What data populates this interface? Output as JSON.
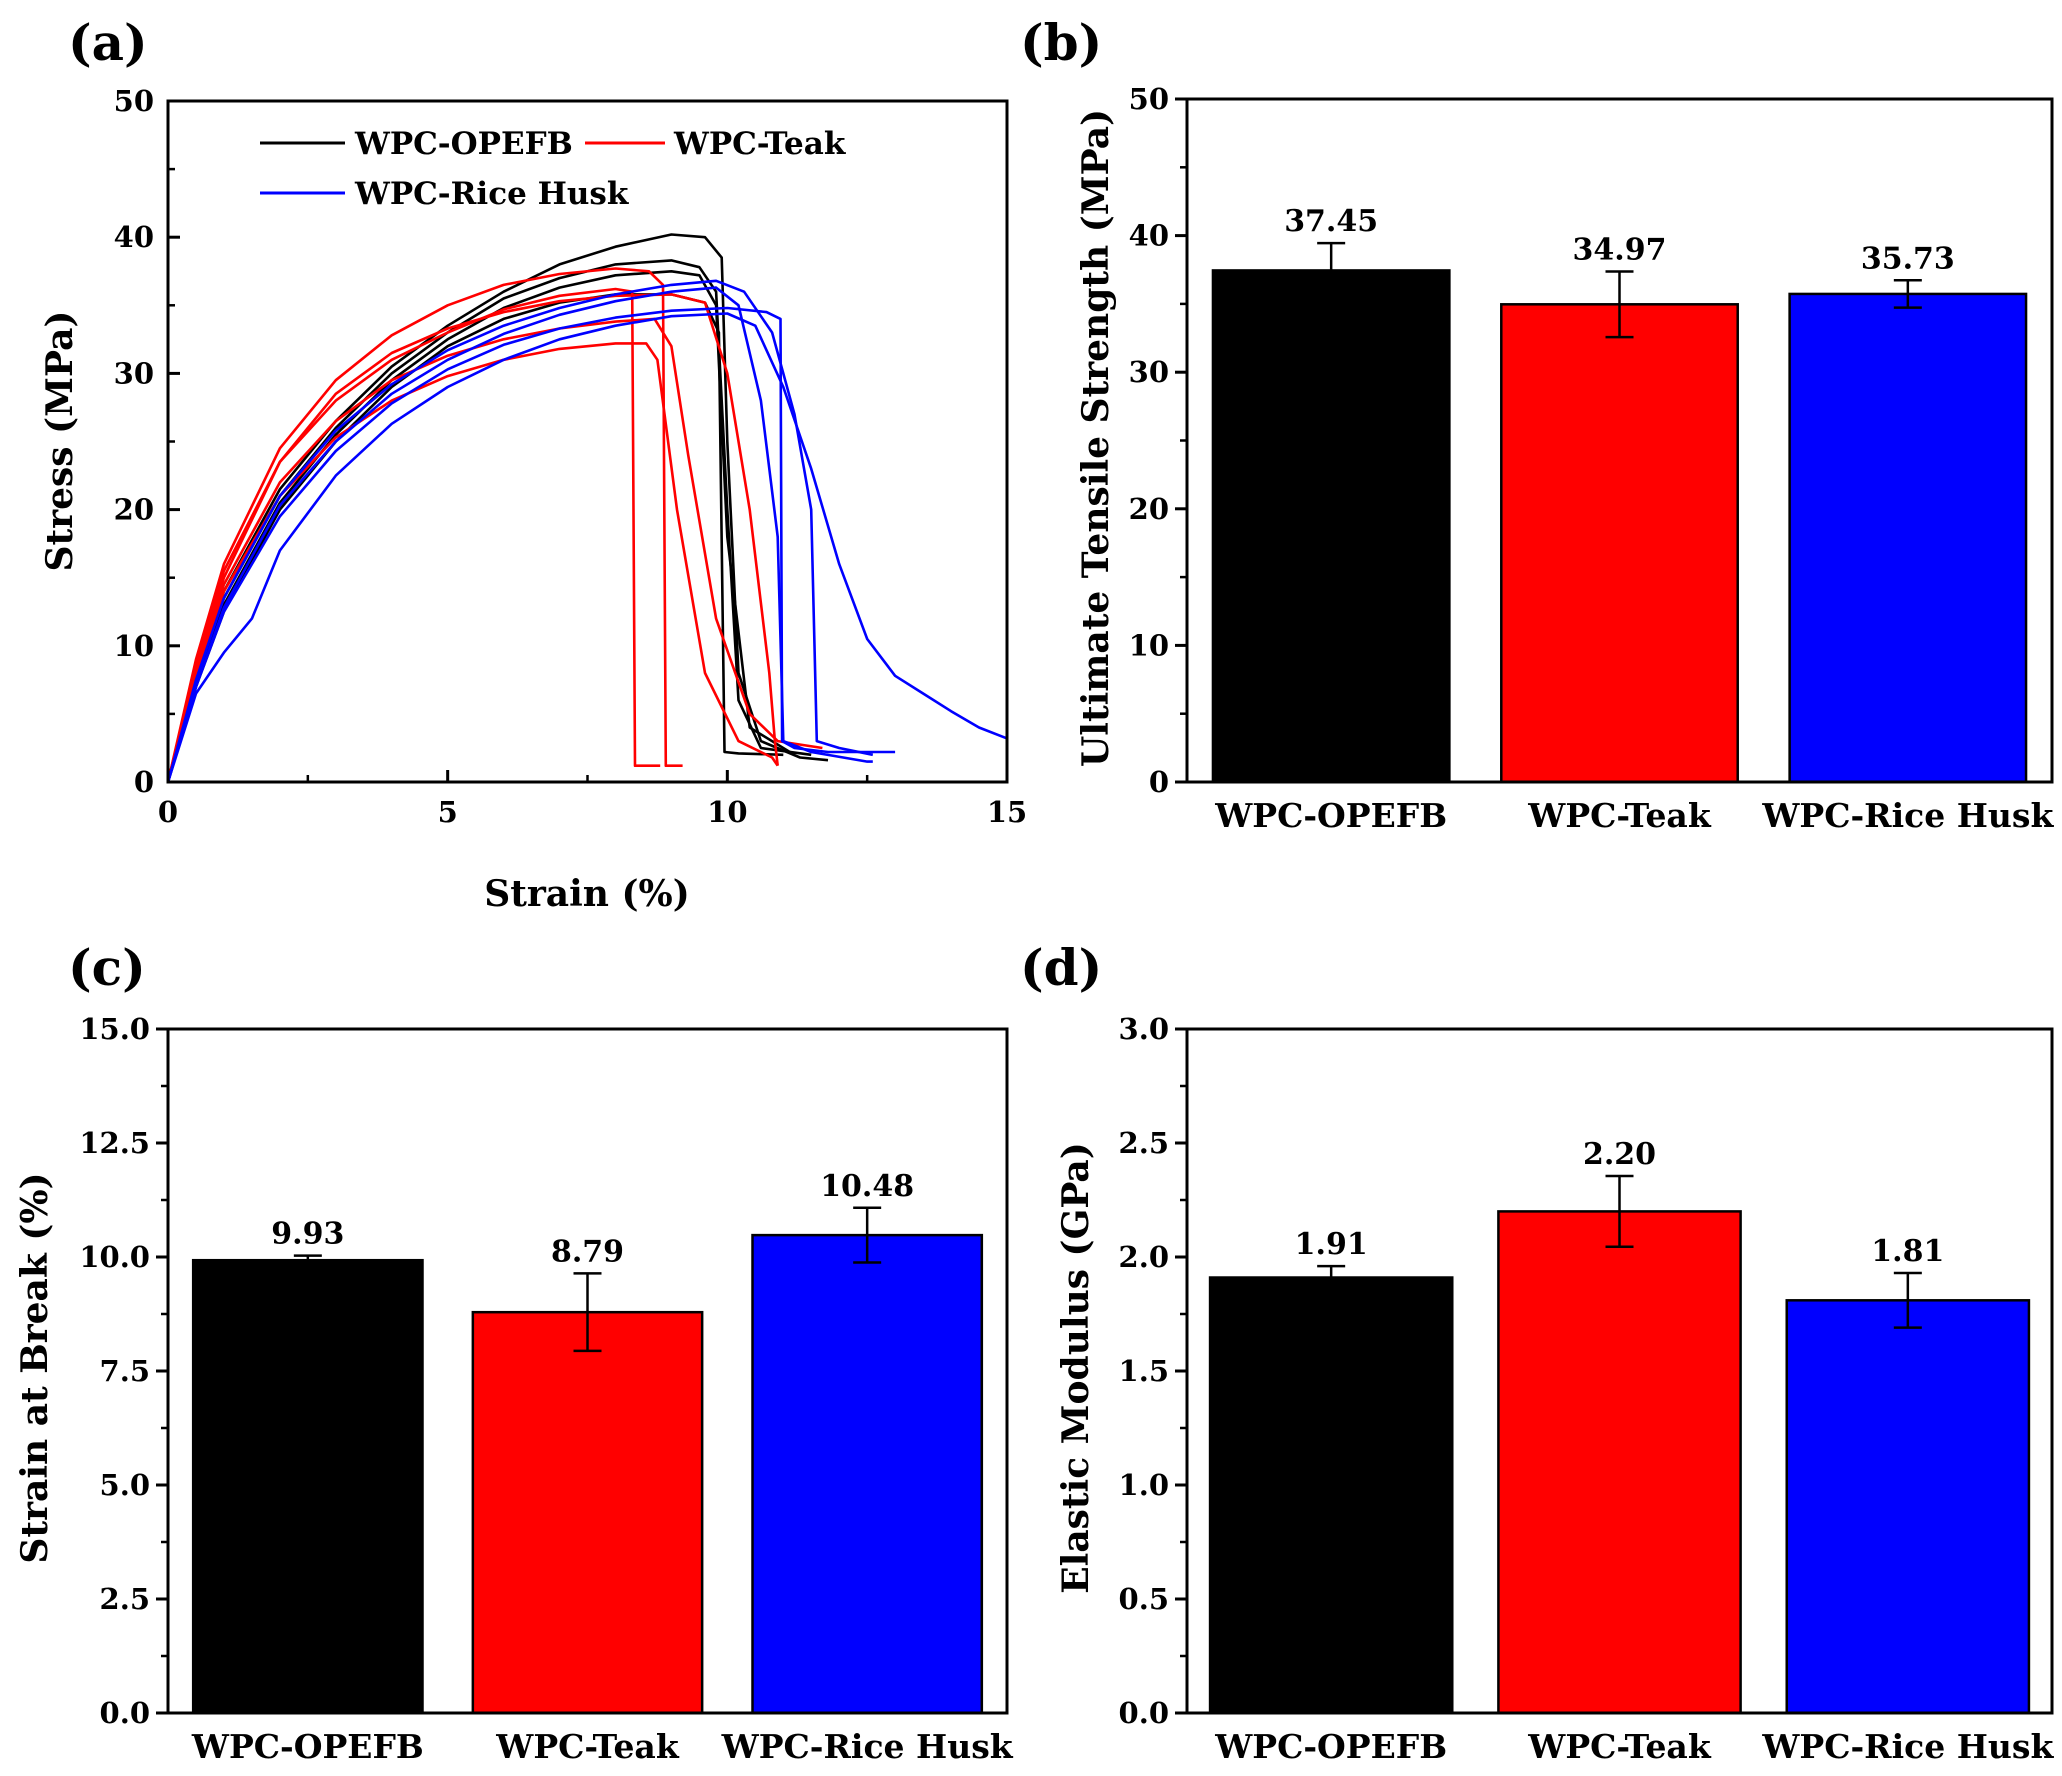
{
  "colors": {
    "opefb": "#000000",
    "teak": "#ff0000",
    "rice": "#0000ff"
  },
  "chart_data": [
    {
      "panel": "(a)",
      "type": "line",
      "xlabel": "Strain (%)",
      "ylabel": "Stress (MPa)",
      "xlim": [
        0,
        15
      ],
      "ylim": [
        0,
        50
      ],
      "xticks": [
        0,
        5,
        10,
        15
      ],
      "yticks": [
        0,
        10,
        20,
        30,
        40,
        50
      ],
      "legend": [
        "WPC-OPEFB",
        "WPC-Teak",
        "WPC-Rice Husk"
      ],
      "series": [
        {
          "name": "WPC-OPEFB",
          "color": "#000000",
          "x": [
            0,
            0.5,
            1,
            2,
            3,
            4,
            5,
            6,
            7,
            8,
            9,
            9.6,
            9.9,
            10.0,
            10.2,
            10.6,
            11.3,
            11.8
          ],
          "y": [
            0,
            8,
            14,
            21.5,
            26.5,
            30.5,
            33.5,
            36,
            38,
            39.3,
            40.2,
            40,
            38.5,
            25,
            8,
            3,
            1.8,
            1.6
          ]
        },
        {
          "name": "WPC-OPEFB",
          "color": "#000000",
          "x": [
            0,
            0.5,
            1,
            2,
            3,
            4,
            5,
            6,
            7,
            8,
            9,
            9.5,
            9.8,
            10.0,
            10.2,
            10.6,
            11.5
          ],
          "y": [
            0,
            7.5,
            13.5,
            21,
            26,
            30,
            33,
            35.5,
            37,
            38,
            38.3,
            37.8,
            36,
            20,
            6,
            2.5,
            2
          ]
        },
        {
          "name": "WPC-OPEFB",
          "color": "#000000",
          "x": [
            0,
            0.5,
            1,
            2,
            3,
            4,
            5,
            6,
            7,
            8,
            9,
            9.5,
            9.8,
            10.0,
            10.4,
            11.2
          ],
          "y": [
            0,
            7,
            13,
            20.5,
            25.5,
            29.5,
            32.5,
            34.8,
            36.3,
            37.2,
            37.5,
            37.2,
            35,
            18,
            4,
            2
          ]
        },
        {
          "name": "WPC-OPEFB",
          "color": "#000000",
          "x": [
            0,
            0.5,
            1,
            2,
            3,
            4,
            5,
            6,
            7,
            8,
            9,
            9.6,
            9.85,
            9.95,
            10.2,
            11.0
          ],
          "y": [
            0,
            7,
            12.5,
            20,
            25,
            29,
            32,
            34,
            35.2,
            35.8,
            35.8,
            35.2,
            33,
            2.2,
            2.1,
            2
          ]
        },
        {
          "name": "WPC-Teak",
          "color": "#ff0000",
          "x": [
            0,
            0.5,
            1,
            2,
            3,
            4,
            5,
            6,
            7,
            8,
            8.6,
            8.85,
            8.9,
            9.2
          ],
          "y": [
            0,
            9,
            16,
            24.5,
            29.5,
            32.8,
            35,
            36.5,
            37.3,
            37.7,
            37.5,
            36.5,
            1.2,
            1.2
          ]
        },
        {
          "name": "WPC-Teak",
          "color": "#ff0000",
          "x": [
            0,
            0.5,
            1,
            2,
            3,
            4,
            5,
            6,
            7,
            8,
            8.3,
            8.35,
            8.8
          ],
          "y": [
            0,
            8.5,
            15,
            23.5,
            28,
            31,
            33,
            34.7,
            35.7,
            36.2,
            36,
            1.2,
            1.2
          ]
        },
        {
          "name": "WPC-Teak",
          "color": "#ff0000",
          "x": [
            0,
            0.5,
            1,
            2,
            3,
            4,
            5,
            6,
            7,
            8,
            8.7,
            9.0,
            9.3,
            9.8,
            10.4,
            10.9,
            11.7
          ],
          "y": [
            0,
            8,
            14.5,
            22,
            26.5,
            29.5,
            31.3,
            32.5,
            33.3,
            33.8,
            34,
            32,
            24,
            12,
            5,
            3,
            2.5
          ]
        },
        {
          "name": "WPC-Teak",
          "color": "#ff0000",
          "x": [
            0,
            0.5,
            1,
            2,
            3,
            4,
            5,
            6,
            7,
            8,
            8.55,
            8.75,
            9.1,
            9.6,
            10.2,
            10.8,
            10.9
          ],
          "y": [
            0,
            8,
            14,
            21,
            25.3,
            28,
            29.8,
            31,
            31.8,
            32.2,
            32.2,
            31,
            20,
            8,
            3,
            1.8,
            1.2
          ]
        },
        {
          "name": "WPC-Teak",
          "color": "#ff0000",
          "x": [
            0,
            0.5,
            1,
            2,
            3,
            4,
            5,
            6,
            7,
            8,
            9,
            9.6,
            10.0,
            10.4,
            10.75,
            10.85,
            10.9
          ],
          "y": [
            0,
            8.5,
            15.5,
            23.5,
            28.5,
            31.5,
            33.3,
            34.5,
            35.3,
            35.7,
            35.8,
            35.2,
            30,
            20,
            8,
            3,
            1.2
          ]
        },
        {
          "name": "WPC-Rice Husk",
          "color": "#0000ff",
          "x": [
            0,
            0.5,
            1,
            2,
            3,
            4,
            5,
            6,
            7,
            8,
            9,
            10,
            10.7,
            10.95,
            10.98,
            11.2,
            11.8,
            12.5,
            13.0
          ],
          "y": [
            0,
            7,
            12.5,
            19.5,
            24.3,
            27.8,
            30.3,
            32.1,
            33.3,
            34.1,
            34.6,
            34.8,
            34.5,
            34,
            3,
            2.5,
            2.2,
            2.2,
            2.2
          ]
        },
        {
          "name": "WPC-Rice Husk",
          "color": "#0000ff",
          "x": [
            0,
            0.5,
            1,
            1.5,
            2,
            3,
            4,
            5,
            6,
            7,
            8,
            9,
            10,
            10.5,
            11.0,
            11.5,
            12.0,
            12.5,
            13.0,
            13.5,
            14,
            14.5,
            15
          ],
          "y": [
            0,
            6.5,
            9.5,
            12,
            17,
            22.5,
            26.3,
            29,
            31,
            32.5,
            33.5,
            34.2,
            34.4,
            33.5,
            29,
            23,
            16,
            10.5,
            7.8,
            6.5,
            5.2,
            4,
            3.2
          ]
        },
        {
          "name": "WPC-Rice Husk",
          "color": "#0000ff",
          "x": [
            0,
            0.5,
            1,
            2,
            3,
            4,
            5,
            6,
            7,
            8,
            9,
            9.8,
            10.3,
            10.8,
            11.2,
            11.5,
            11.6,
            12.0,
            12.6
          ],
          "y": [
            0,
            7.5,
            13.5,
            21,
            25.8,
            29.2,
            31.7,
            33.5,
            34.8,
            35.8,
            36.5,
            36.8,
            36,
            33,
            27,
            20,
            3,
            2.5,
            2
          ]
        },
        {
          "name": "WPC-Rice Husk",
          "color": "#0000ff",
          "x": [
            0,
            0.5,
            1,
            2,
            3,
            4,
            5,
            6,
            7,
            8,
            9,
            9.8,
            10.2,
            10.6,
            10.9,
            11.0,
            11.5,
            12.5,
            12.6
          ],
          "y": [
            0,
            7,
            12.8,
            20.3,
            25,
            28.5,
            31,
            32.9,
            34.3,
            35.3,
            36,
            36.3,
            35,
            28,
            18,
            3,
            2.2,
            1.5,
            1.5
          ]
        }
      ]
    },
    {
      "panel": "(b)",
      "type": "bar",
      "ylabel": "Ultimate Tensile Strength (MPa)",
      "categories": [
        "WPC-OPEFB",
        "WPC-Teak",
        "WPC-Rice Husk"
      ],
      "values": [
        37.45,
        34.97,
        35.73
      ],
      "errors": [
        2.0,
        2.4,
        1.0
      ],
      "value_labels": [
        "37.45",
        "34.97",
        "35.73"
      ],
      "colors": [
        "#000000",
        "#ff0000",
        "#0000ff"
      ],
      "ylim": [
        0,
        50
      ],
      "yticks": [
        0,
        10,
        20,
        30,
        40,
        50
      ],
      "ytick_labels": [
        "0",
        "10",
        "20",
        "30",
        "40",
        "50"
      ]
    },
    {
      "panel": "(c)",
      "type": "bar",
      "ylabel": "Strain at Break (%)",
      "categories": [
        "WPC-OPEFB",
        "WPC-Teak",
        "WPC-Rice Husk"
      ],
      "values": [
        9.93,
        8.79,
        10.48
      ],
      "errors": [
        0.1,
        0.85,
        0.6
      ],
      "value_labels": [
        "9.93",
        "8.79",
        "10.48"
      ],
      "colors": [
        "#000000",
        "#ff0000",
        "#0000ff"
      ],
      "ylim": [
        0,
        15
      ],
      "yticks": [
        0,
        2.5,
        5,
        7.5,
        10,
        12.5,
        15
      ],
      "ytick_labels": [
        "0.0",
        "2.5",
        "5.0",
        "7.5",
        "10.0",
        "12.5",
        "15.0"
      ]
    },
    {
      "panel": "(d)",
      "type": "bar",
      "ylabel": "Elastic Modulus (GPa)",
      "categories": [
        "WPC-OPEFB",
        "WPC-Teak",
        "WPC-Rice Husk"
      ],
      "values": [
        1.91,
        2.2,
        1.81
      ],
      "errors": [
        0.05,
        0.155,
        0.12
      ],
      "value_labels": [
        "1.91",
        "2.20",
        "1.81"
      ],
      "colors": [
        "#000000",
        "#ff0000",
        "#0000ff"
      ],
      "ylim": [
        0,
        3.0
      ],
      "yticks": [
        0,
        0.5,
        1.0,
        1.5,
        2.0,
        2.5,
        3.0
      ],
      "ytick_labels": [
        "0.0",
        "0.5",
        "1.0",
        "1.5",
        "2.0",
        "2.5",
        "3.0"
      ]
    }
  ]
}
